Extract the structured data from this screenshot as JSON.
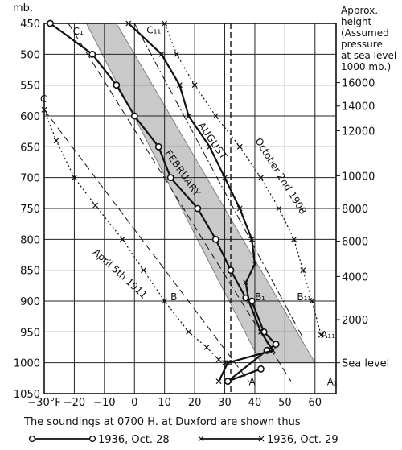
{
  "chart_data": {
    "type": "line",
    "pressure_axis": {
      "label": "mb.",
      "ticks": [
        450,
        500,
        550,
        600,
        650,
        700,
        750,
        800,
        850,
        900,
        950,
        1000,
        1050
      ],
      "range": [
        450,
        1050
      ]
    },
    "temperature_axis": {
      "ticks": [
        -30,
        -20,
        -10,
        0,
        10,
        20,
        30,
        40,
        50,
        60
      ],
      "tick_labels": [
        "−30°F",
        "−20",
        "−10",
        "0",
        "10",
        "20",
        "30",
        "40",
        "50",
        "60"
      ],
      "range": [
        -30,
        67
      ]
    },
    "height_axis": {
      "title_lines": [
        "Approx.",
        "height",
        "(Assumed",
        "pressure",
        "at sea level",
        "1000 mb.)"
      ],
      "ticks": [
        {
          "label": "16000",
          "pressure": 546
        },
        {
          "label": "14000",
          "pressure": 584
        },
        {
          "label": "12000",
          "pressure": 624
        },
        {
          "label": "10000",
          "pressure": 697
        },
        {
          "label": "8000",
          "pressure": 750
        },
        {
          "label": "6000",
          "pressure": 803
        },
        {
          "label": "4000",
          "pressure": 860
        },
        {
          "label": "2000",
          "pressure": 930
        },
        {
          "label": "Sea level",
          "pressure": 1000
        }
      ]
    },
    "reference_temperature": 32,
    "shaded_band": {
      "left_edge": [
        [
          -16,
          450
        ],
        [
          42,
          1000
        ]
      ],
      "right_edge": [
        [
          -6,
          450
        ],
        [
          60,
          1000
        ]
      ]
    },
    "dashed_lines": [
      {
        "points": [
          [
            -22,
            450
          ],
          [
            52,
            1030
          ]
        ],
        "start_label": "C₁",
        "end_label": "A₁"
      },
      {
        "points": [
          [
            -30,
            590
          ],
          [
            38,
            1030
          ]
        ],
        "start_label": "C",
        "end_label": "A"
      }
    ],
    "dash_dot_line": {
      "points": [
        [
          0,
          450
        ],
        [
          56,
          960
        ]
      ],
      "start_label": "C₁₁",
      "end_label": "A₁₁"
    },
    "point_labels": [
      {
        "text": "B",
        "t": 12,
        "p": 892
      },
      {
        "text": "B₁",
        "t": 40,
        "p": 892
      },
      {
        "text": "B₁₁",
        "t": 54,
        "p": 892
      }
    ],
    "band_labels": [
      {
        "text": "FEBRUARY",
        "t": 10,
        "p": 660
      },
      {
        "text": "AUGUST",
        "t": 21,
        "p": 615
      }
    ],
    "series": [
      {
        "name": "1936, Oct. 28",
        "style": "solid-circle",
        "points": [
          [
            -28,
            450
          ],
          [
            -14,
            500
          ],
          [
            -6,
            550
          ],
          [
            0,
            600
          ],
          [
            8,
            650
          ],
          [
            12,
            700
          ],
          [
            21,
            750
          ],
          [
            27,
            800
          ],
          [
            32,
            850
          ],
          [
            37,
            895
          ],
          [
            39,
            900
          ],
          [
            43,
            950
          ],
          [
            47,
            970
          ],
          [
            44,
            980
          ],
          [
            31,
            1030
          ],
          [
            42,
            1010
          ]
        ]
      },
      {
        "name": "1936, Oct. 29",
        "style": "solid-cross",
        "points": [
          [
            -2,
            450
          ],
          [
            9,
            500
          ],
          [
            15,
            550
          ],
          [
            18,
            600
          ],
          [
            25,
            650
          ],
          [
            30,
            700
          ],
          [
            35,
            750
          ],
          [
            39,
            800
          ],
          [
            40,
            840
          ],
          [
            37,
            870
          ],
          [
            38,
            900
          ],
          [
            42,
            950
          ],
          [
            46,
            980
          ],
          [
            31,
            1000
          ],
          [
            28,
            1030
          ]
        ]
      },
      {
        "name": "October 2nd 1908",
        "style": "dotted-cross",
        "points": [
          [
            10,
            450
          ],
          [
            14,
            500
          ],
          [
            20,
            550
          ],
          [
            27,
            600
          ],
          [
            35,
            650
          ],
          [
            42,
            700
          ],
          [
            48,
            750
          ],
          [
            53,
            800
          ],
          [
            56,
            850
          ],
          [
            59,
            900
          ],
          [
            62,
            955
          ]
        ]
      },
      {
        "name": "April 5th 1911",
        "style": "dotted-cross",
        "points": [
          [
            -30,
            590
          ],
          [
            -26,
            640
          ],
          [
            -20,
            700
          ],
          [
            -13,
            745
          ],
          [
            -4,
            800
          ],
          [
            3,
            850
          ],
          [
            10,
            900
          ],
          [
            18,
            950
          ],
          [
            24,
            975
          ],
          [
            28,
            995
          ],
          [
            30,
            1000
          ]
        ]
      }
    ],
    "caption": "The soundings at 0700 H. at Duxford are shown thus",
    "legend": [
      {
        "label": "1936, Oct. 28",
        "style": "solid-circle"
      },
      {
        "label": "1936, Oct. 29",
        "style": "solid-cross"
      }
    ]
  }
}
